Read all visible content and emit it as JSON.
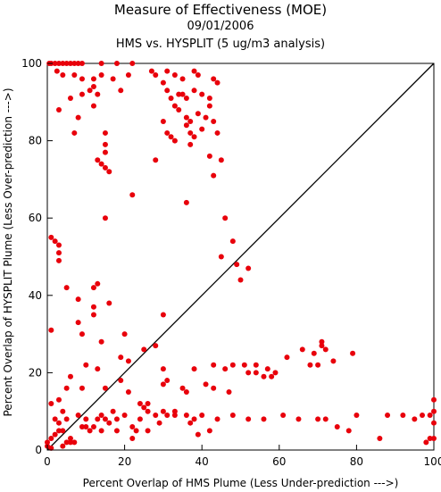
{
  "chart_data": {
    "type": "scatter",
    "title": "Measure of Effectiveness (MOE)",
    "subtitle_date": "09/01/2006",
    "subtitle_comparison": "HMS vs. HYSPLIT  (5 ug/m3 analysis)",
    "xlabel": "Percent Overlap of HMS Plume (Less Under-prediction --->)",
    "ylabel": "Percent Overlap of HYSPLIT Plume (Less Over-prediction --->)",
    "xlim": [
      0,
      100
    ],
    "ylim": [
      0,
      100
    ],
    "xticks": [
      0,
      20,
      40,
      60,
      80,
      100
    ],
    "yticks": [
      0,
      20,
      40,
      60,
      80,
      100
    ],
    "grid": false,
    "point_color": "#e8000b",
    "reference_line": {
      "from": [
        0,
        0
      ],
      "to": [
        100,
        100
      ]
    },
    "points": [
      [
        0.5,
        100
      ],
      [
        1,
        100
      ],
      [
        2,
        100
      ],
      [
        3,
        100
      ],
      [
        4,
        100
      ],
      [
        5,
        100
      ],
      [
        6,
        100
      ],
      [
        7,
        100
      ],
      [
        8,
        100
      ],
      [
        9,
        100
      ],
      [
        14,
        100
      ],
      [
        18,
        100
      ],
      [
        22,
        100
      ],
      [
        2.5,
        98
      ],
      [
        4,
        97
      ],
      [
        7,
        97
      ],
      [
        9,
        96
      ],
      [
        12,
        96
      ],
      [
        14,
        97
      ],
      [
        17,
        96
      ],
      [
        21,
        97
      ],
      [
        27,
        98
      ],
      [
        28,
        97
      ],
      [
        31,
        98
      ],
      [
        33,
        97
      ],
      [
        35,
        96
      ],
      [
        38,
        98
      ],
      [
        39,
        97
      ],
      [
        43,
        96
      ],
      [
        44,
        95
      ],
      [
        6,
        91
      ],
      [
        9,
        92
      ],
      [
        11,
        93
      ],
      [
        12,
        94
      ],
      [
        13,
        92
      ],
      [
        19,
        93
      ],
      [
        30,
        95
      ],
      [
        31,
        93
      ],
      [
        32,
        91
      ],
      [
        34,
        92
      ],
      [
        35,
        92
      ],
      [
        36,
        91
      ],
      [
        38,
        93
      ],
      [
        40,
        92
      ],
      [
        42,
        91
      ],
      [
        3,
        88
      ],
      [
        8,
        86
      ],
      [
        12,
        89
      ],
      [
        33,
        89
      ],
      [
        34,
        88
      ],
      [
        36,
        86
      ],
      [
        37,
        85
      ],
      [
        39,
        87
      ],
      [
        41,
        86
      ],
      [
        42,
        89
      ],
      [
        43,
        85
      ],
      [
        7,
        82
      ],
      [
        15,
        82
      ],
      [
        15,
        79
      ],
      [
        15,
        77
      ],
      [
        30,
        85
      ],
      [
        31,
        82
      ],
      [
        32,
        81
      ],
      [
        33,
        80
      ],
      [
        36,
        84
      ],
      [
        37,
        82
      ],
      [
        38,
        81
      ],
      [
        40,
        83
      ],
      [
        44,
        82
      ],
      [
        37,
        79
      ],
      [
        42,
        76
      ],
      [
        13,
        75
      ],
      [
        14,
        74
      ],
      [
        15,
        73
      ],
      [
        16,
        72
      ],
      [
        28,
        75
      ],
      [
        45,
        75
      ],
      [
        43,
        71
      ],
      [
        22,
        66
      ],
      [
        36,
        64
      ],
      [
        15,
        60
      ],
      [
        46,
        60
      ],
      [
        48,
        54
      ],
      [
        1,
        55
      ],
      [
        2,
        54
      ],
      [
        3,
        53
      ],
      [
        3,
        51
      ],
      [
        3,
        49
      ],
      [
        45,
        50
      ],
      [
        49,
        48
      ],
      [
        52,
        47
      ],
      [
        50,
        44
      ],
      [
        5,
        42
      ],
      [
        12,
        42
      ],
      [
        13,
        43
      ],
      [
        8,
        39
      ],
      [
        16,
        38
      ],
      [
        12,
        37
      ],
      [
        12,
        35
      ],
      [
        8,
        33
      ],
      [
        30,
        35
      ],
      [
        1,
        31
      ],
      [
        9,
        30
      ],
      [
        20,
        30
      ],
      [
        14,
        28
      ],
      [
        28,
        27
      ],
      [
        19,
        24
      ],
      [
        25,
        26
      ],
      [
        10,
        22
      ],
      [
        21,
        23
      ],
      [
        13,
        21
      ],
      [
        38,
        21
      ],
      [
        43,
        22
      ],
      [
        46,
        21
      ],
      [
        48,
        22
      ],
      [
        51,
        22
      ],
      [
        54,
        22
      ],
      [
        57,
        21
      ],
      [
        62,
        24
      ],
      [
        66,
        26
      ],
      [
        69,
        25
      ],
      [
        71,
        28
      ],
      [
        71,
        27
      ],
      [
        72,
        26
      ],
      [
        74,
        23
      ],
      [
        79,
        25
      ],
      [
        68,
        22
      ],
      [
        70,
        22
      ],
      [
        52,
        20
      ],
      [
        54,
        20
      ],
      [
        56,
        19
      ],
      [
        58,
        19
      ],
      [
        59,
        20
      ],
      [
        1,
        12
      ],
      [
        3,
        13
      ],
      [
        4,
        10
      ],
      [
        5,
        16
      ],
      [
        6,
        19
      ],
      [
        9,
        16
      ],
      [
        15,
        16
      ],
      [
        19,
        18
      ],
      [
        21,
        15
      ],
      [
        24,
        12
      ],
      [
        25,
        11
      ],
      [
        26,
        12
      ],
      [
        30,
        17
      ],
      [
        31,
        18
      ],
      [
        35,
        16
      ],
      [
        30,
        21
      ],
      [
        36,
        15
      ],
      [
        41,
        17
      ],
      [
        43,
        16
      ],
      [
        47,
        15
      ],
      [
        2,
        8
      ],
      [
        3,
        7
      ],
      [
        4,
        5
      ],
      [
        5,
        8
      ],
      [
        6,
        3
      ],
      [
        7,
        2
      ],
      [
        8,
        9
      ],
      [
        9,
        6
      ],
      [
        11,
        5
      ],
      [
        12,
        6
      ],
      [
        13,
        8
      ],
      [
        15,
        8
      ],
      [
        16,
        7
      ],
      [
        18,
        5
      ],
      [
        20,
        9
      ],
      [
        22,
        6
      ],
      [
        24,
        8
      ],
      [
        26,
        5
      ],
      [
        28,
        9
      ],
      [
        30,
        10
      ],
      [
        31,
        9
      ],
      [
        33,
        9
      ],
      [
        36,
        9
      ],
      [
        37,
        7
      ],
      [
        38,
        8
      ],
      [
        39,
        4
      ],
      [
        40,
        9
      ],
      [
        42,
        5
      ],
      [
        44,
        8
      ],
      [
        48,
        9
      ],
      [
        52,
        8
      ],
      [
        56,
        8
      ],
      [
        61,
        9
      ],
      [
        65,
        8
      ],
      [
        70,
        8
      ],
      [
        72,
        8
      ],
      [
        75,
        6
      ],
      [
        78,
        5
      ],
      [
        80,
        9
      ],
      [
        86,
        3
      ],
      [
        88,
        9
      ],
      [
        92,
        9
      ],
      [
        95,
        8
      ],
      [
        97,
        9
      ],
      [
        99,
        9
      ],
      [
        100,
        10
      ],
      [
        100,
        13
      ],
      [
        100,
        7
      ],
      [
        100,
        3
      ],
      [
        99,
        3
      ],
      [
        98,
        2
      ],
      [
        0,
        1
      ],
      [
        0,
        2
      ],
      [
        1,
        3
      ],
      [
        1,
        0.5
      ],
      [
        2,
        4
      ],
      [
        3,
        5
      ],
      [
        4,
        1
      ],
      [
        5,
        2
      ],
      [
        6,
        2
      ],
      [
        10,
        6
      ],
      [
        10,
        8
      ],
      [
        14,
        5
      ],
      [
        22,
        3
      ],
      [
        26,
        10
      ],
      [
        14,
        9
      ],
      [
        23,
        5
      ],
      [
        17,
        10
      ],
      [
        18,
        8
      ],
      [
        29,
        7
      ],
      [
        33,
        10
      ]
    ]
  }
}
